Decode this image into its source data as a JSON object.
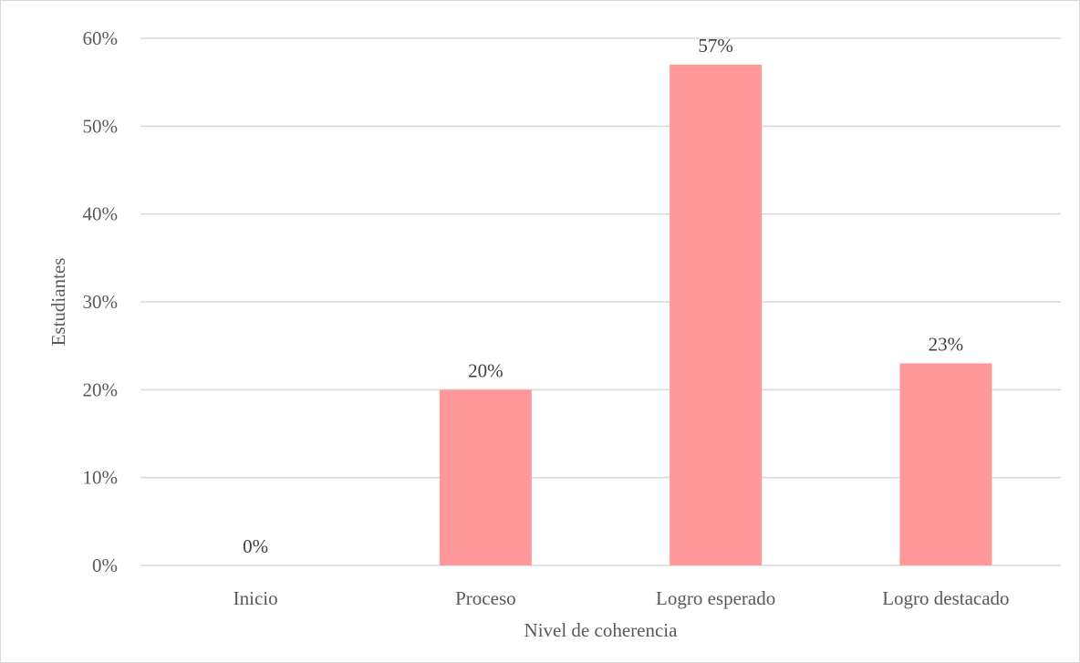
{
  "chart_data": {
    "type": "bar",
    "categories": [
      "Inicio",
      "Proceso",
      "Logro esperado",
      "Logro destacado"
    ],
    "values": [
      0,
      20,
      57,
      23
    ],
    "data_labels": [
      "0%",
      "20%",
      "57%",
      "23%"
    ],
    "title": "",
    "xlabel": "Nivel de coherencia",
    "ylabel": "Estudiantes",
    "ylim": [
      0,
      60
    ],
    "y_ticks": [
      0,
      10,
      20,
      30,
      40,
      50,
      60
    ],
    "y_tick_labels": [
      "0%",
      "10%",
      "20%",
      "30%",
      "40%",
      "50%",
      "60%"
    ],
    "grid": true,
    "legend": "none",
    "bar_color": "#ff9999",
    "grid_color": "#d9d9d9"
  }
}
